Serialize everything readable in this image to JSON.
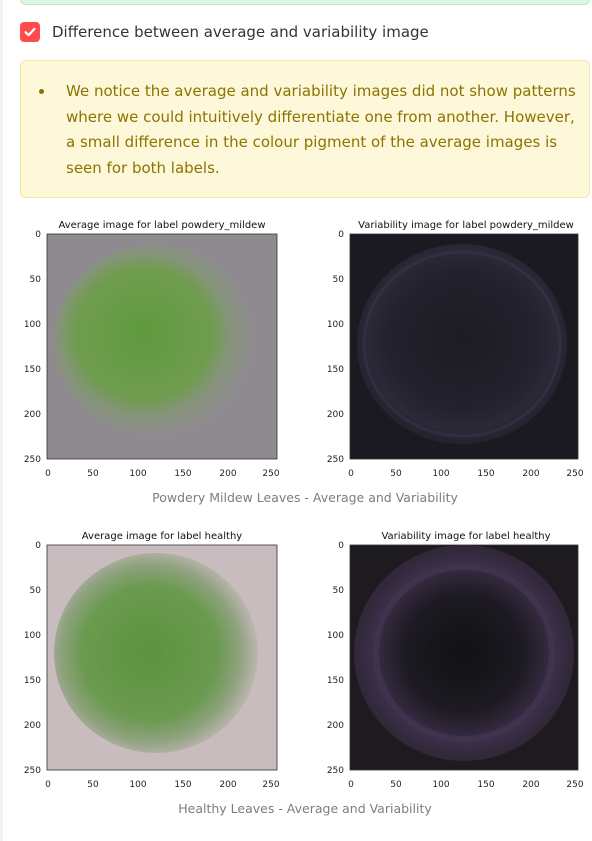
{
  "checkbox": {
    "label": "Difference between average and variability image",
    "checked": true,
    "accent_color": "#ff4b4b"
  },
  "info": {
    "text": "We notice the average and variability images did not show patterns where we could intuitively differentiate one from another. However, a small difference in the colour pigment of the average images is seen for both labels."
  },
  "figures": [
    {
      "caption": "Powdery Mildew Leaves - Average and Variability",
      "panels": [
        {
          "title": "Average image for label powdery_mildew",
          "x_ticks": [
            "0",
            "50",
            "100",
            "150",
            "200",
            "250"
          ],
          "y_ticks": [
            "0",
            "50",
            "100",
            "150",
            "200",
            "250"
          ]
        },
        {
          "title": "Variability image for label powdery_mildew",
          "x_ticks": [
            "0",
            "50",
            "100",
            "150",
            "200",
            "250"
          ],
          "y_ticks": [
            "0",
            "50",
            "100",
            "150",
            "200",
            "250"
          ]
        }
      ]
    },
    {
      "caption": "Healthy Leaves - Average and Variability",
      "panels": [
        {
          "title": "Average image for label healthy",
          "x_ticks": [
            "0",
            "50",
            "100",
            "150",
            "200",
            "250"
          ],
          "y_ticks": [
            "0",
            "50",
            "100",
            "150",
            "200",
            "250"
          ]
        },
        {
          "title": "Variability image for label healthy",
          "x_ticks": [
            "0",
            "50",
            "100",
            "150",
            "200",
            "250"
          ],
          "y_ticks": [
            "0",
            "50",
            "100",
            "150",
            "200",
            "250"
          ]
        }
      ]
    }
  ]
}
